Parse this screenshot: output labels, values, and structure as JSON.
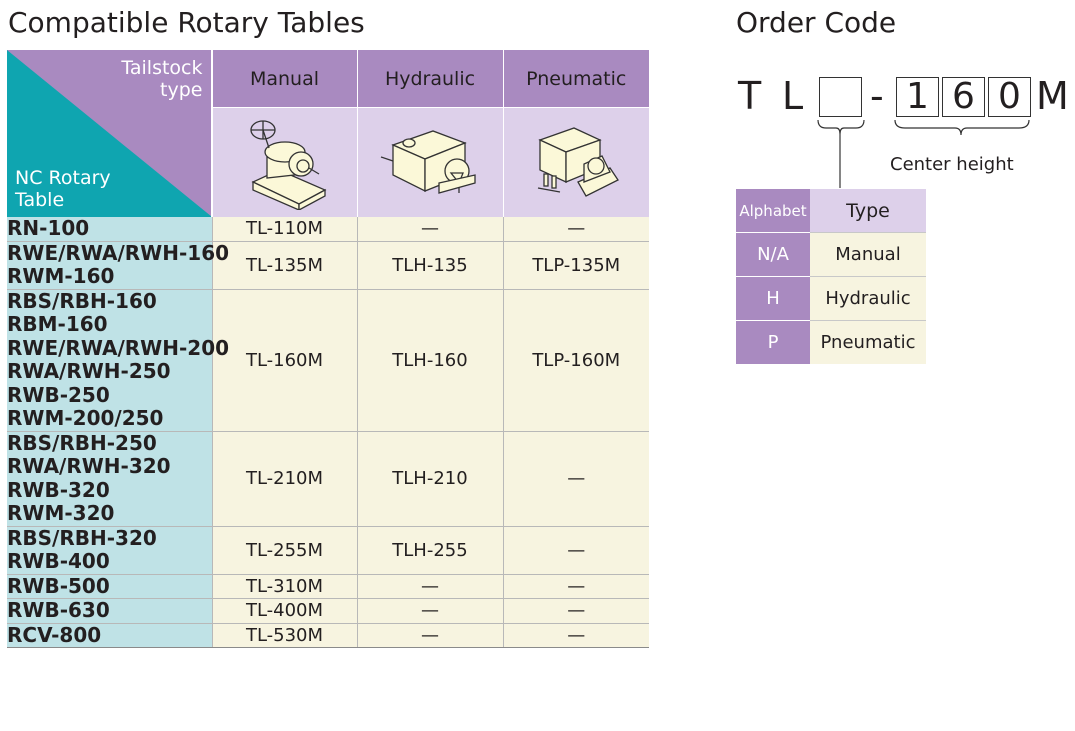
{
  "left_title": "Compatible Rotary Tables",
  "right_title": "Order Code",
  "table": {
    "corner_top": [
      "Tailstock",
      "type"
    ],
    "corner_bottom": [
      "NC Rotary",
      "Table"
    ],
    "columns": [
      "Manual",
      "Hydraulic",
      "Pneumatic"
    ],
    "rows": [
      {
        "models": [
          "RN-100"
        ],
        "manual": "TL-110M",
        "hydraulic": "—",
        "pneumatic": "—"
      },
      {
        "models": [
          "RWE/RWA/RWH-160",
          "RWM-160"
        ],
        "manual": "TL-135M",
        "hydraulic": "TLH-135",
        "pneumatic": "TLP-135M"
      },
      {
        "models": [
          "RBS/RBH-160",
          "RBM-160",
          "RWE/RWA/RWH-200",
          "RWA/RWH-250",
          "RWB-250",
          "RWM-200/250"
        ],
        "manual": "TL-160M",
        "hydraulic": "TLH-160",
        "pneumatic": "TLP-160M"
      },
      {
        "models": [
          "RBS/RBH-250",
          "RWA/RWH-320",
          "RWB-320",
          "RWM-320"
        ],
        "manual": "TL-210M",
        "hydraulic": "TLH-210",
        "pneumatic": "—"
      },
      {
        "models": [
          "RBS/RBH-320",
          "RWB-400"
        ],
        "manual": "TL-255M",
        "hydraulic": "TLH-255",
        "pneumatic": "—"
      },
      {
        "models": [
          "RWB-500"
        ],
        "manual": "TL-310M",
        "hydraulic": "—",
        "pneumatic": "—"
      },
      {
        "models": [
          "RWB-630"
        ],
        "manual": "TL-400M",
        "hydraulic": "—",
        "pneumatic": "—"
      },
      {
        "models": [
          "RCV-800"
        ],
        "manual": "TL-530M",
        "hydraulic": "—",
        "pneumatic": "—"
      }
    ]
  },
  "order_code": {
    "prefix": [
      "T",
      "L"
    ],
    "dash": "-",
    "digits": [
      "1",
      "6",
      "0"
    ],
    "suffix": "M",
    "center_height_label": "Center height",
    "legend": {
      "head_key": "Alphabet",
      "head_value": "Type",
      "rows": [
        {
          "key": "N/A",
          "value": "Manual"
        },
        {
          "key": "H",
          "value": "Hydraulic"
        },
        {
          "key": "P",
          "value": "Pneumatic"
        }
      ]
    }
  },
  "colors": {
    "purple": "#a98ac0",
    "light_purple": "#ddd0ea",
    "teal": "#0fa5b0",
    "light_teal": "#bfe2e6",
    "cream": "#f7f4e0"
  },
  "icons": [
    "manual-tailstock-icon",
    "hydraulic-tailstock-icon",
    "pneumatic-tailstock-icon"
  ]
}
